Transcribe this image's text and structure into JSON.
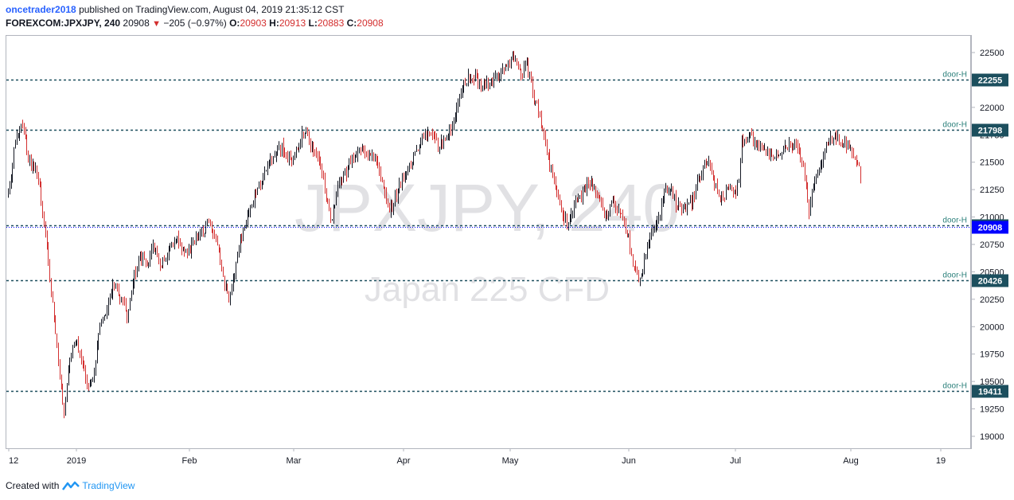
{
  "header": {
    "author": "oncetrader2018",
    "published": "published on TradingView.com, August 04, 2019 21:35:12 CST",
    "symbol": "FOREXCOM:JPXJPY, 240",
    "last": "20908",
    "change": "−205 (−0.97%)",
    "o_label": "O:",
    "o_value": "20903",
    "h_label": "H:",
    "h_value": "20913",
    "l_label": "L:",
    "l_value": "20883",
    "c_label": "C:",
    "c_value": "20908"
  },
  "watermark": {
    "symbol": "JPXJPY, 240",
    "name": "Japan 225 CFD"
  },
  "footer": {
    "created_with": "Created with",
    "brand": "TradingView"
  },
  "colors": {
    "up": "#131722",
    "down": "#d32f2f",
    "level": "#1c4f5e",
    "level_text": "#2a7f7a",
    "price_badge": "#0000ff"
  },
  "chart_data": {
    "type": "candlestick",
    "ylim": [
      18900,
      22650
    ],
    "y_ticks": [
      19000,
      19250,
      19500,
      19750,
      20000,
      20250,
      20500,
      20750,
      21000,
      21250,
      21500,
      21750,
      22000,
      22250,
      22500
    ],
    "x_ticks": [
      "12",
      "2019",
      "Feb",
      "Mar",
      "Apr",
      "May",
      "Jun",
      "Jul",
      "Aug",
      "19"
    ],
    "levels": [
      {
        "label": "door-H",
        "value": 22255
      },
      {
        "label": "door-H",
        "value": 21798
      },
      {
        "label": "door-H",
        "value": 20926
      },
      {
        "label": "door-H",
        "value": 20426
      },
      {
        "label": "door-H",
        "value": 19411
      }
    ],
    "last_price": 20908,
    "path": [
      [
        0,
        21200
      ],
      [
        8,
        21650
      ],
      [
        18,
        21850
      ],
      [
        26,
        21500
      ],
      [
        35,
        21450
      ],
      [
        42,
        21150
      ],
      [
        50,
        20600
      ],
      [
        58,
        20050
      ],
      [
        65,
        19550
      ],
      [
        70,
        19150
      ],
      [
        76,
        19650
      ],
      [
        84,
        19900
      ],
      [
        92,
        19700
      ],
      [
        100,
        19450
      ],
      [
        108,
        19600
      ],
      [
        116,
        20050
      ],
      [
        124,
        20150
      ],
      [
        132,
        20400
      ],
      [
        140,
        20300
      ],
      [
        150,
        20100
      ],
      [
        158,
        20450
      ],
      [
        166,
        20650
      ],
      [
        174,
        20550
      ],
      [
        182,
        20750
      ],
      [
        192,
        20550
      ],
      [
        202,
        20700
      ],
      [
        212,
        20800
      ],
      [
        222,
        20650
      ],
      [
        232,
        20750
      ],
      [
        242,
        20850
      ],
      [
        252,
        20950
      ],
      [
        262,
        20800
      ],
      [
        270,
        20450
      ],
      [
        278,
        20250
      ],
      [
        286,
        20550
      ],
      [
        294,
        20850
      ],
      [
        304,
        21100
      ],
      [
        314,
        21250
      ],
      [
        324,
        21450
      ],
      [
        334,
        21550
      ],
      [
        344,
        21650
      ],
      [
        354,
        21500
      ],
      [
        364,
        21650
      ],
      [
        372,
        21800
      ],
      [
        380,
        21650
      ],
      [
        390,
        21550
      ],
      [
        398,
        21250
      ],
      [
        406,
        20950
      ],
      [
        414,
        21300
      ],
      [
        424,
        21400
      ],
      [
        434,
        21550
      ],
      [
        444,
        21600
      ],
      [
        454,
        21550
      ],
      [
        464,
        21500
      ],
      [
        472,
        21250
      ],
      [
        480,
        21050
      ],
      [
        490,
        21250
      ],
      [
        500,
        21400
      ],
      [
        510,
        21550
      ],
      [
        520,
        21700
      ],
      [
        530,
        21800
      ],
      [
        540,
        21650
      ],
      [
        550,
        21700
      ],
      [
        560,
        21900
      ],
      [
        568,
        22150
      ],
      [
        576,
        22250
      ],
      [
        584,
        22300
      ],
      [
        594,
        22200
      ],
      [
        604,
        22250
      ],
      [
        614,
        22300
      ],
      [
        624,
        22350
      ],
      [
        634,
        22450
      ],
      [
        644,
        22300
      ],
      [
        652,
        22400
      ],
      [
        660,
        22100
      ],
      [
        668,
        21900
      ],
      [
        674,
        21700
      ],
      [
        680,
        21500
      ],
      [
        688,
        21250
      ],
      [
        696,
        21000
      ],
      [
        704,
        20950
      ],
      [
        712,
        21150
      ],
      [
        720,
        21200
      ],
      [
        730,
        21350
      ],
      [
        740,
        21200
      ],
      [
        750,
        21000
      ],
      [
        760,
        21150
      ],
      [
        770,
        21000
      ],
      [
        778,
        20850
      ],
      [
        786,
        20550
      ],
      [
        794,
        20400
      ],
      [
        800,
        20650
      ],
      [
        808,
        20850
      ],
      [
        816,
        20950
      ],
      [
        824,
        21200
      ],
      [
        832,
        21300
      ],
      [
        840,
        21100
      ],
      [
        848,
        21050
      ],
      [
        856,
        21100
      ],
      [
        864,
        21250
      ],
      [
        872,
        21450
      ],
      [
        880,
        21550
      ],
      [
        888,
        21300
      ],
      [
        896,
        21150
      ],
      [
        904,
        21250
      ],
      [
        912,
        21200
      ],
      [
        918,
        21350
      ],
      [
        922,
        21700
      ],
      [
        930,
        21750
      ],
      [
        940,
        21650
      ],
      [
        950,
        21650
      ],
      [
        960,
        21550
      ],
      [
        970,
        21600
      ],
      [
        980,
        21650
      ],
      [
        990,
        21650
      ],
      [
        998,
        21500
      ],
      [
        1006,
        21050
      ],
      [
        1012,
        21300
      ],
      [
        1020,
        21450
      ],
      [
        1028,
        21650
      ],
      [
        1036,
        21750
      ],
      [
        1044,
        21700
      ],
      [
        1052,
        21650
      ],
      [
        1060,
        21600
      ],
      [
        1068,
        21500
      ],
      [
        1073,
        21200
      ],
      [
        1078,
        21000
      ],
      [
        1083,
        20908
      ]
    ]
  }
}
